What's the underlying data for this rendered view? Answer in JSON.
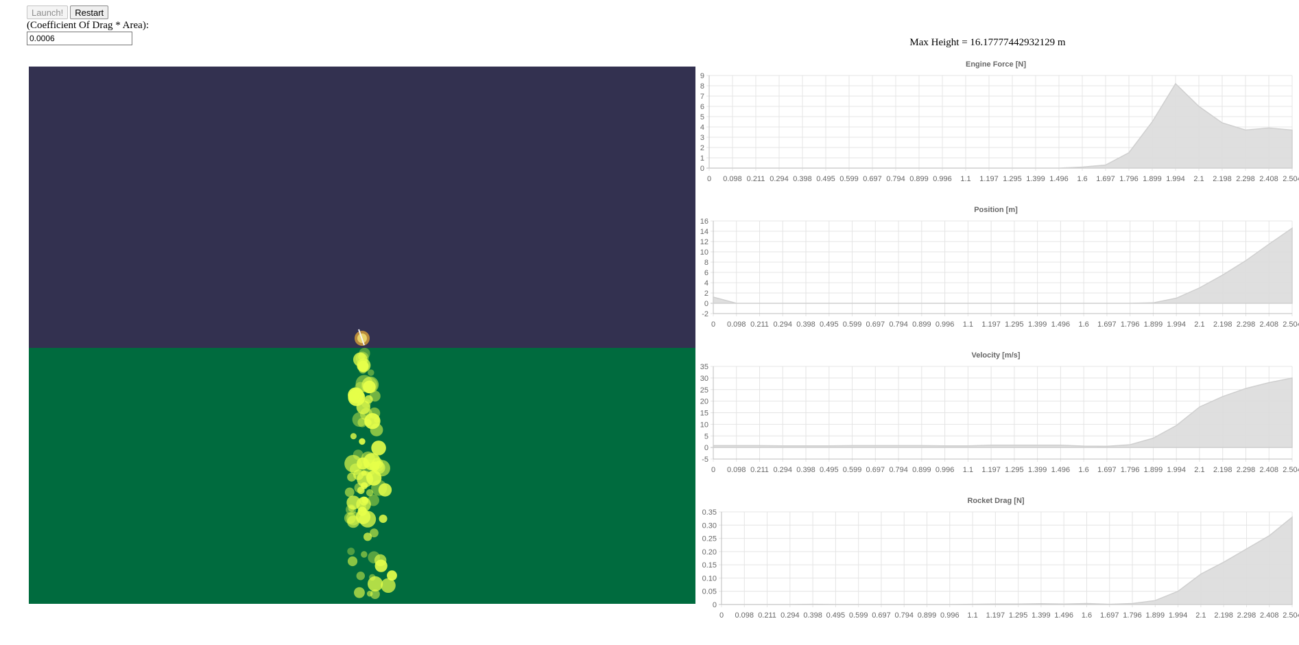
{
  "controls": {
    "launch_label": "Launch!",
    "restart_label": "Restart",
    "drag_label": "(Coefficient Of Drag * Area):",
    "drag_value": "0.0006"
  },
  "max_height_text": "Max Height = 16.17777442932129 m",
  "scene": {
    "sky_color": "#333150",
    "ground_color": "#006b3e",
    "particle_color": "#e6ff4a"
  },
  "chart_data": [
    {
      "type": "area",
      "title": "Engine Force [N]",
      "x": [
        "0",
        "0.098",
        "0.211",
        "0.294",
        "0.398",
        "0.495",
        "0.599",
        "0.697",
        "0.794",
        "0.899",
        "0.996",
        "1.1",
        "1.197",
        "1.295",
        "1.399",
        "1.496",
        "1.6",
        "1.697",
        "1.796",
        "1.899",
        "1.994",
        "2.1",
        "2.198",
        "2.298",
        "2.408",
        "2.504"
      ],
      "yticks": [
        0,
        1,
        2,
        3,
        4,
        5,
        6,
        7,
        8,
        9
      ],
      "ylim": [
        0,
        9
      ],
      "values": [
        0,
        0,
        0,
        0,
        0,
        0,
        0,
        0,
        0,
        0,
        0,
        0,
        0,
        0,
        0,
        0,
        0.1,
        0.3,
        1.5,
        4.5,
        8.2,
        6.0,
        4.4,
        3.7,
        3.9,
        3.7
      ],
      "grid": true
    },
    {
      "type": "area",
      "title": "Position [m]",
      "x": [
        "0",
        "0.098",
        "0.211",
        "0.294",
        "0.398",
        "0.495",
        "0.599",
        "0.697",
        "0.794",
        "0.899",
        "0.996",
        "1.1",
        "1.197",
        "1.295",
        "1.399",
        "1.496",
        "1.6",
        "1.697",
        "1.796",
        "1.899",
        "1.994",
        "2.1",
        "2.198",
        "2.298",
        "2.408",
        "2.504"
      ],
      "yticks": [
        -2,
        0,
        2,
        4,
        6,
        8,
        10,
        12,
        14,
        16
      ],
      "ylim": [
        -2,
        16
      ],
      "values": [
        1.2,
        0,
        0,
        0,
        0,
        0,
        0,
        0,
        0,
        0,
        0,
        0,
        0,
        0,
        0,
        0,
        0,
        0,
        0,
        0.1,
        1.0,
        3.0,
        5.5,
        8.3,
        11.5,
        14.6
      ],
      "grid": true
    },
    {
      "type": "area",
      "title": "Velocity [m/s]",
      "x": [
        "0",
        "0.098",
        "0.211",
        "0.294",
        "0.398",
        "0.495",
        "0.599",
        "0.697",
        "0.794",
        "0.899",
        "0.996",
        "1.1",
        "1.197",
        "1.295",
        "1.399",
        "1.496",
        "1.6",
        "1.697",
        "1.796",
        "1.899",
        "1.994",
        "2.1",
        "2.198",
        "2.298",
        "2.408",
        "2.504"
      ],
      "yticks": [
        -5,
        0,
        5,
        10,
        15,
        20,
        25,
        30,
        35
      ],
      "ylim": [
        -5,
        35
      ],
      "values": [
        0.8,
        0.8,
        0.8,
        0.7,
        0.7,
        0.7,
        0.8,
        0.8,
        0.8,
        0.8,
        0.7,
        0.7,
        1.0,
        1.0,
        1.0,
        1.0,
        0.6,
        0.5,
        1.2,
        4.0,
        9.5,
        17.5,
        22.0,
        25.5,
        28.0,
        30.0
      ],
      "grid": true
    },
    {
      "type": "area",
      "title": "Rocket Drag [N]",
      "x": [
        "0",
        "0.098",
        "0.211",
        "0.294",
        "0.398",
        "0.495",
        "0.599",
        "0.697",
        "0.794",
        "0.899",
        "0.996",
        "1.1",
        "1.197",
        "1.295",
        "1.399",
        "1.496",
        "1.6",
        "1.697",
        "1.796",
        "1.899",
        "1.994",
        "2.1",
        "2.198",
        "2.298",
        "2.408",
        "2.504"
      ],
      "yticks": [
        "0",
        "0.05",
        "0.10",
        "0.15",
        "0.20",
        "0.25",
        "0.30",
        "0.35"
      ],
      "ylim": [
        0,
        0.35
      ],
      "values": [
        0,
        0,
        0,
        0,
        0.001,
        0,
        0,
        0,
        0,
        0,
        0,
        0.001,
        0.002,
        0.002,
        0.003,
        0.002,
        0.004,
        0.001,
        0.004,
        0.015,
        0.05,
        0.115,
        0.16,
        0.21,
        0.26,
        0.33
      ],
      "grid": true
    }
  ]
}
